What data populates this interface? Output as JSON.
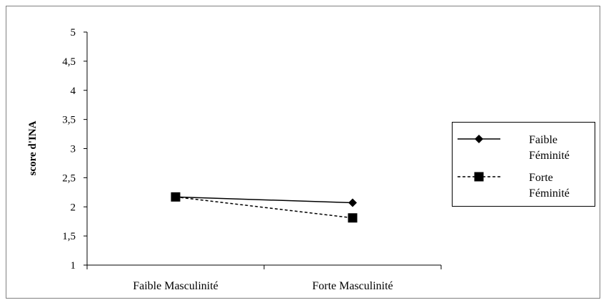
{
  "chart_data": {
    "type": "line",
    "title": "",
    "xlabel": "",
    "ylabel": "score d'INA",
    "categories": [
      "Faible Masculinité",
      "Forte Masculinité"
    ],
    "ylim": [
      1,
      5
    ],
    "yticks": [
      1,
      1.5,
      2,
      2.5,
      3,
      3.5,
      4,
      4.5,
      5
    ],
    "ytick_labels": [
      "1",
      "1,5",
      "2",
      "2,5",
      "3",
      "3,5",
      "4",
      "4,5",
      "5"
    ],
    "grid": false,
    "legend_position": "right",
    "series": [
      {
        "name_lines": [
          "Faible",
          "Féminité"
        ],
        "values": [
          2.17,
          2.07
        ],
        "marker": "diamond",
        "line_style": "solid",
        "color": "#000000"
      },
      {
        "name_lines": [
          "Forte",
          "Féminité"
        ],
        "values": [
          2.17,
          1.81
        ],
        "marker": "square",
        "line_style": "dashed",
        "color": "#000000"
      }
    ]
  }
}
